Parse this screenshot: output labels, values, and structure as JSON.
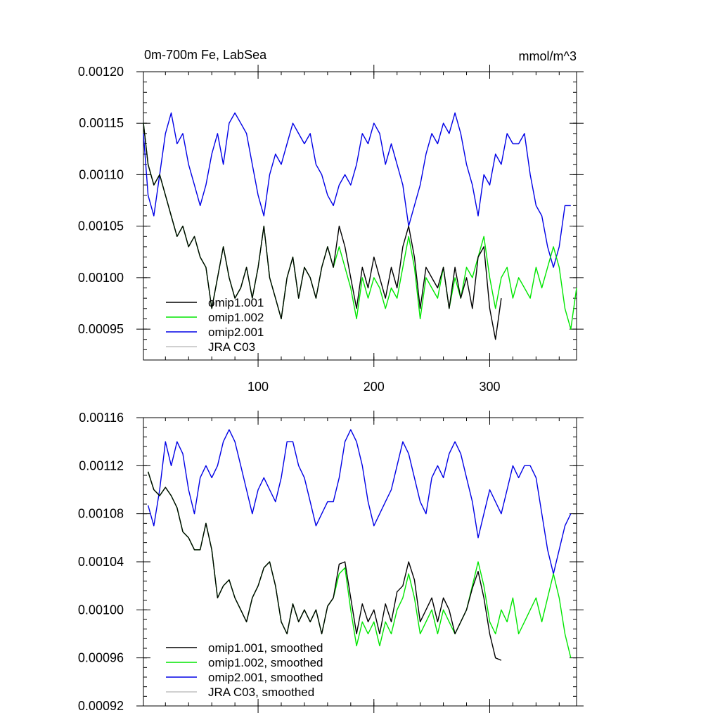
{
  "chart_data": [
    {
      "type": "line",
      "title": "0m-700m Fe, LabSea",
      "units": "mmol/m^3",
      "xlim": [
        1,
        375
      ],
      "ylim": [
        0.00092,
        0.0012
      ],
      "xticks": [
        100,
        200,
        300
      ],
      "xtick_labels": [
        "100",
        "200",
        "300"
      ],
      "yticks": [
        0.00095,
        0.001,
        0.00105,
        0.0011,
        0.00115,
        0.0012
      ],
      "ytick_labels": [
        "0.00095",
        "0.00100",
        "0.00105",
        "0.00110",
        "0.00115",
        "0.00120"
      ],
      "legend_position": "bottom-left",
      "series": [
        {
          "name": "omip1.001",
          "color": "#000000",
          "x": [
            1,
            5,
            10,
            15,
            20,
            25,
            30,
            35,
            40,
            45,
            50,
            55,
            60,
            65,
            70,
            75,
            80,
            85,
            90,
            95,
            100,
            105,
            110,
            115,
            120,
            125,
            130,
            135,
            140,
            145,
            150,
            155,
            160,
            165,
            170,
            175,
            180,
            185,
            190,
            195,
            200,
            205,
            210,
            215,
            220,
            225,
            230,
            235,
            240,
            245,
            250,
            255,
            260,
            265,
            270,
            275,
            280,
            285,
            290,
            295,
            300,
            305,
            310
          ],
          "y": [
            0.00115,
            0.00111,
            0.00109,
            0.0011,
            0.00108,
            0.00106,
            0.00104,
            0.00105,
            0.00103,
            0.00104,
            0.00102,
            0.00101,
            0.00097,
            0.001,
            0.00103,
            0.001,
            0.00098,
            0.00099,
            0.00101,
            0.00098,
            0.00101,
            0.00105,
            0.001,
            0.00098,
            0.00096,
            0.001,
            0.00102,
            0.00098,
            0.00101,
            0.001,
            0.00098,
            0.00101,
            0.00103,
            0.00101,
            0.00105,
            0.00103,
            0.001,
            0.00097,
            0.00101,
            0.00099,
            0.00102,
            0.001,
            0.00098,
            0.00101,
            0.00099,
            0.00103,
            0.00105,
            0.00102,
            0.00097,
            0.00101,
            0.001,
            0.00099,
            0.00101,
            0.00097,
            0.00101,
            0.00098,
            0.001,
            0.00097,
            0.00102,
            0.00103,
            0.00097,
            0.00094,
            0.00098
          ]
        },
        {
          "name": "omip1.002",
          "color": "#00e600",
          "x": [
            1,
            5,
            10,
            15,
            20,
            25,
            30,
            35,
            40,
            45,
            50,
            55,
            60,
            65,
            70,
            75,
            80,
            85,
            90,
            95,
            100,
            105,
            110,
            115,
            120,
            125,
            130,
            135,
            140,
            145,
            150,
            155,
            160,
            165,
            170,
            175,
            180,
            185,
            190,
            195,
            200,
            205,
            210,
            215,
            220,
            225,
            230,
            235,
            240,
            245,
            250,
            255,
            260,
            265,
            270,
            275,
            280,
            285,
            290,
            295,
            300,
            305,
            310,
            315,
            320,
            325,
            330,
            335,
            340,
            345,
            350,
            355,
            360,
            365,
            370,
            375
          ],
          "y": [
            0.00115,
            0.00111,
            0.00109,
            0.0011,
            0.00108,
            0.00106,
            0.00104,
            0.00105,
            0.00103,
            0.00104,
            0.00102,
            0.00101,
            0.00097,
            0.001,
            0.00103,
            0.001,
            0.00098,
            0.00099,
            0.00101,
            0.00098,
            0.00101,
            0.00105,
            0.001,
            0.00098,
            0.00096,
            0.001,
            0.00102,
            0.00098,
            0.00101,
            0.001,
            0.00098,
            0.00101,
            0.00103,
            0.00101,
            0.00103,
            0.00101,
            0.00099,
            0.00096,
            0.001,
            0.00098,
            0.001,
            0.00099,
            0.00097,
            0.00099,
            0.00098,
            0.00101,
            0.00104,
            0.00101,
            0.00096,
            0.001,
            0.00099,
            0.00098,
            0.00101,
            0.00097,
            0.001,
            0.00098,
            0.00101,
            0.001,
            0.00102,
            0.00104,
            0.001,
            0.00097,
            0.001,
            0.00101,
            0.00098,
            0.001,
            0.00099,
            0.00098,
            0.00101,
            0.00099,
            0.00101,
            0.00103,
            0.00101,
            0.00097,
            0.00095,
            0.00099
          ]
        },
        {
          "name": "omip2.001",
          "color": "#0000e6",
          "x": [
            1,
            5,
            10,
            15,
            20,
            25,
            30,
            35,
            40,
            45,
            50,
            55,
            60,
            65,
            70,
            75,
            80,
            85,
            90,
            95,
            100,
            105,
            110,
            115,
            120,
            125,
            130,
            135,
            140,
            145,
            150,
            155,
            160,
            165,
            170,
            175,
            180,
            185,
            190,
            195,
            200,
            205,
            210,
            215,
            220,
            225,
            230,
            235,
            240,
            245,
            250,
            255,
            260,
            265,
            270,
            275,
            280,
            285,
            290,
            295,
            300,
            305,
            310,
            315,
            320,
            325,
            330,
            335,
            340,
            345,
            350,
            355,
            360,
            365,
            370
          ],
          "y": [
            0.00114,
            0.00108,
            0.00106,
            0.0011,
            0.00114,
            0.00116,
            0.00113,
            0.00114,
            0.00111,
            0.00109,
            0.00107,
            0.00109,
            0.00112,
            0.00114,
            0.00111,
            0.00115,
            0.00116,
            0.00115,
            0.00114,
            0.00111,
            0.00108,
            0.00106,
            0.0011,
            0.00112,
            0.00111,
            0.00113,
            0.00115,
            0.00114,
            0.00113,
            0.00114,
            0.00111,
            0.0011,
            0.00108,
            0.00107,
            0.00109,
            0.0011,
            0.00109,
            0.00111,
            0.00114,
            0.00113,
            0.00115,
            0.00114,
            0.00111,
            0.00113,
            0.00111,
            0.00109,
            0.00105,
            0.00107,
            0.00109,
            0.00112,
            0.00114,
            0.00113,
            0.00115,
            0.00114,
            0.00116,
            0.00114,
            0.00111,
            0.00109,
            0.00106,
            0.0011,
            0.00109,
            0.00112,
            0.00111,
            0.00114,
            0.00113,
            0.00113,
            0.00114,
            0.0011,
            0.00107,
            0.00106,
            0.00103,
            0.00101,
            0.00103,
            0.00107,
            0.00107
          ]
        },
        {
          "name": "JRA C03",
          "color": "#c0c0c0",
          "x": [],
          "y": []
        }
      ]
    },
    {
      "type": "line",
      "title": "",
      "xlim": [
        1,
        375
      ],
      "ylim": [
        0.00092,
        0.00116
      ],
      "xticks": [
        100,
        200,
        300
      ],
      "xtick_labels": [],
      "yticks": [
        0.00092,
        0.00096,
        0.001,
        0.00104,
        0.00108,
        0.00112,
        0.00116
      ],
      "ytick_labels": [
        "0.00092",
        "0.00096",
        "0.00100",
        "0.00104",
        "0.00108",
        "0.00112",
        "0.00116"
      ],
      "legend_position": "bottom-left",
      "series": [
        {
          "name": "omip1.001, smoothed",
          "color": "#000000",
          "x": [
            5,
            10,
            15,
            20,
            25,
            30,
            35,
            40,
            45,
            50,
            55,
            60,
            65,
            70,
            75,
            80,
            85,
            90,
            95,
            100,
            105,
            110,
            115,
            120,
            125,
            130,
            135,
            140,
            145,
            150,
            155,
            160,
            165,
            170,
            175,
            180,
            185,
            190,
            195,
            200,
            205,
            210,
            215,
            220,
            225,
            230,
            235,
            240,
            245,
            250,
            255,
            260,
            265,
            270,
            275,
            280,
            285,
            290,
            295,
            300,
            305,
            310
          ],
          "y": [
            0.001115,
            0.0011,
            0.001095,
            0.001102,
            0.001095,
            0.001085,
            0.001065,
            0.00106,
            0.00105,
            0.00105,
            0.001072,
            0.00105,
            0.00101,
            0.00102,
            0.001025,
            0.00101,
            0.001,
            0.00099,
            0.00101,
            0.00102,
            0.001035,
            0.00104,
            0.00102,
            0.00099,
            0.00098,
            0.001005,
            0.00099,
            0.001,
            0.00099,
            0.001,
            0.00098,
            0.001003,
            0.00101,
            0.001038,
            0.00104,
            0.00101,
            0.00098,
            0.001005,
            0.00099,
            0.001,
            0.00098,
            0.001005,
            0.00099,
            0.001015,
            0.00102,
            0.00104,
            0.001025,
            0.00099,
            0.001,
            0.00101,
            0.00099,
            0.00101,
            0.001,
            0.00098,
            0.00099,
            0.001,
            0.001018,
            0.001032,
            0.00101,
            0.00098,
            0.00096,
            0.000958
          ]
        },
        {
          "name": "omip1.002, smoothed",
          "color": "#00e600",
          "x": [
            5,
            10,
            15,
            20,
            25,
            30,
            35,
            40,
            45,
            50,
            55,
            60,
            65,
            70,
            75,
            80,
            85,
            90,
            95,
            100,
            105,
            110,
            115,
            120,
            125,
            130,
            135,
            140,
            145,
            150,
            155,
            160,
            165,
            170,
            175,
            180,
            185,
            190,
            195,
            200,
            205,
            210,
            215,
            220,
            225,
            230,
            235,
            240,
            245,
            250,
            255,
            260,
            265,
            270,
            275,
            280,
            285,
            290,
            295,
            300,
            305,
            310,
            315,
            320,
            325,
            330,
            335,
            340,
            345,
            350,
            355,
            360,
            365,
            370
          ],
          "y": [
            0.001115,
            0.0011,
            0.001095,
            0.001102,
            0.001095,
            0.001085,
            0.001065,
            0.00106,
            0.00105,
            0.00105,
            0.001072,
            0.00105,
            0.00101,
            0.00102,
            0.001025,
            0.00101,
            0.001,
            0.00099,
            0.00101,
            0.00102,
            0.001035,
            0.00104,
            0.00102,
            0.00099,
            0.00098,
            0.001005,
            0.00099,
            0.001,
            0.00099,
            0.001,
            0.00098,
            0.001003,
            0.00101,
            0.00103,
            0.001035,
            0.001,
            0.00097,
            0.00099,
            0.00098,
            0.00099,
            0.00097,
            0.00099,
            0.00098,
            0.001,
            0.00101,
            0.00103,
            0.00101,
            0.00098,
            0.00099,
            0.001,
            0.00098,
            0.001,
            0.00099,
            0.00098,
            0.00099,
            0.001,
            0.00102,
            0.00104,
            0.00102,
            0.00099,
            0.00098,
            0.001,
            0.00099,
            0.00101,
            0.00098,
            0.00099,
            0.001,
            0.00101,
            0.00099,
            0.00101,
            0.00103,
            0.00101,
            0.00098,
            0.00096
          ]
        },
        {
          "name": "omip2.001, smoothed",
          "color": "#0000e6",
          "x": [
            5,
            10,
            15,
            20,
            25,
            30,
            35,
            40,
            45,
            50,
            55,
            60,
            65,
            70,
            75,
            80,
            85,
            90,
            95,
            100,
            105,
            110,
            115,
            120,
            125,
            130,
            135,
            140,
            145,
            150,
            155,
            160,
            165,
            170,
            175,
            180,
            185,
            190,
            195,
            200,
            205,
            210,
            215,
            220,
            225,
            230,
            235,
            240,
            245,
            250,
            255,
            260,
            265,
            270,
            275,
            280,
            285,
            290,
            295,
            300,
            305,
            310,
            315,
            320,
            325,
            330,
            335,
            340,
            345,
            350,
            355,
            360,
            365,
            370
          ],
          "y": [
            0.001087,
            0.00107,
            0.0011,
            0.00114,
            0.00112,
            0.00114,
            0.00113,
            0.0011,
            0.00108,
            0.00111,
            0.00112,
            0.00111,
            0.00112,
            0.00114,
            0.00115,
            0.00114,
            0.00112,
            0.0011,
            0.00108,
            0.0011,
            0.00111,
            0.0011,
            0.00109,
            0.00111,
            0.00114,
            0.00114,
            0.00112,
            0.00111,
            0.00109,
            0.00107,
            0.00108,
            0.00109,
            0.00109,
            0.00111,
            0.00114,
            0.00115,
            0.00114,
            0.00112,
            0.00109,
            0.00107,
            0.00108,
            0.00109,
            0.0011,
            0.00112,
            0.00114,
            0.00113,
            0.00111,
            0.00109,
            0.00108,
            0.00111,
            0.00112,
            0.00111,
            0.00113,
            0.00114,
            0.00113,
            0.00111,
            0.00109,
            0.00106,
            0.00108,
            0.0011,
            0.00109,
            0.00108,
            0.0011,
            0.00112,
            0.00111,
            0.00112,
            0.00112,
            0.00111,
            0.00108,
            0.00105,
            0.00103,
            0.00105,
            0.00107,
            0.00108
          ]
        },
        {
          "name": "JRA C03, smoothed",
          "color": "#c0c0c0",
          "x": [],
          "y": []
        }
      ]
    }
  ]
}
